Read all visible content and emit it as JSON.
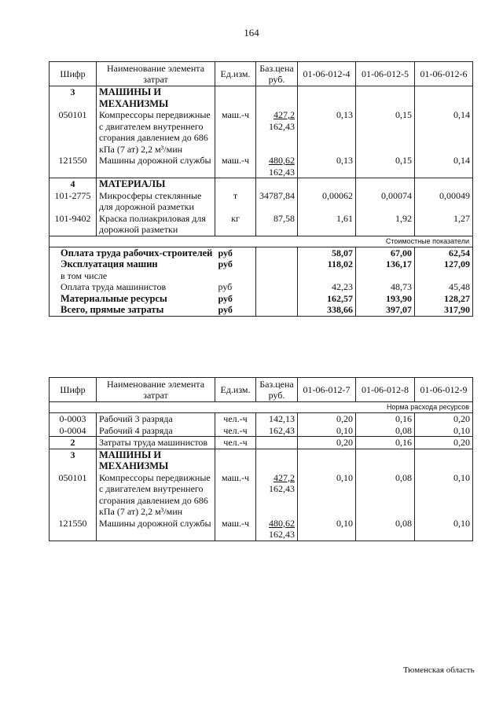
{
  "page_number": "164",
  "footer": "Тюменская область",
  "tables": [
    {
      "headers": [
        "Шифр",
        "Наименование элемента затрат",
        "Ед.изм.",
        "Баз.цена руб.",
        "01-06-012-4",
        "01-06-012-5",
        "01-06-012-6"
      ],
      "rows": [
        {
          "gs": true,
          "code": "3",
          "code_bold": true,
          "name": "МАШИНЫ И МЕХАНИЗМЫ",
          "bold": true,
          "unit": "",
          "price": "",
          "price2": "",
          "values": [
            "",
            "",
            ""
          ]
        },
        {
          "code": "050101",
          "name": "Компрессоры передвижные с двигателем внутреннего сгорания давлением до 686 кПа (7 ат) 2,2 м³/мин",
          "unit": "маш.-ч",
          "price": "427,2",
          "price2": "162,43",
          "values": [
            "0,13",
            "0,15",
            "0,14"
          ]
        },
        {
          "code": "121550",
          "name": "Машины дорожной службы",
          "unit": "маш.-ч",
          "price": "480,62",
          "price2": "162,43",
          "values": [
            "0,13",
            "0,15",
            "0,14"
          ]
        },
        {
          "gs": true,
          "code": "4",
          "code_bold": true,
          "name": "МАТЕРИАЛЫ",
          "bold": true,
          "unit": "",
          "price": "",
          "price2": "",
          "values": [
            "",
            "",
            ""
          ]
        },
        {
          "code": "101-2775",
          "name": "Микросферы стеклянные для дорожной разметки",
          "unit": "т",
          "price": "34787,84",
          "price2": "",
          "values": [
            "0,00062",
            "0,00074",
            "0,00049"
          ]
        },
        {
          "code": "101-9402",
          "name": "Краска полиакриловая для дорожной разметки",
          "unit": "кг",
          "price": "87,58",
          "price2": "",
          "values": [
            "1,61",
            "1,92",
            "1,27"
          ]
        }
      ],
      "band": "Стоимостные показатели",
      "summary": [
        {
          "name": "Оплата труда рабочих-строителей",
          "bold": true,
          "unit": "руб",
          "values": [
            "58,07",
            "67,00",
            "62,54"
          ]
        },
        {
          "name": "Эксплуатация машин",
          "bold": true,
          "unit": "руб",
          "values": [
            "118,02",
            "136,17",
            "127,09"
          ]
        },
        {
          "name": "в том числе",
          "bold": false,
          "unit": "",
          "values": [
            "",
            "",
            ""
          ]
        },
        {
          "name": "Оплата труда машинистов",
          "bold": false,
          "unit": "руб",
          "values": [
            "42,23",
            "48,73",
            "45,48"
          ]
        },
        {
          "name": "Материальные ресурсы",
          "bold": true,
          "unit": "руб",
          "values": [
            "162,57",
            "193,90",
            "128,27"
          ]
        },
        {
          "name": "Всего, прямые затраты",
          "bold": true,
          "unit": "руб",
          "values": [
            "338,66",
            "397,07",
            "317,90"
          ]
        }
      ]
    },
    {
      "headers": [
        "Шифр",
        "Наименование элемента затрат",
        "Ед.изм.",
        "Баз.цена руб.",
        "01-06-012-7",
        "01-06-012-8",
        "01-06-012-9"
      ],
      "band": "Норма расхода ресурсов",
      "rows": [
        {
          "gs": true,
          "code": "0-0003",
          "name": "Рабочий 3 разряда",
          "unit": "чел.-ч",
          "price": "142,13",
          "price2": "",
          "values": [
            "0,20",
            "0,16",
            "0,20"
          ]
        },
        {
          "code": "0-0004",
          "name": "Рабочий 4 разряда",
          "unit": "чел.-ч",
          "price": "162,43",
          "price2": "",
          "values": [
            "0,10",
            "0,08",
            "0,10"
          ]
        },
        {
          "gs": true,
          "code": "2",
          "code_bold": true,
          "name": "Затраты труда машинистов",
          "unit": "чел.-ч",
          "price": "",
          "price2": "",
          "values": [
            "0,20",
            "0,16",
            "0,20"
          ]
        },
        {
          "gs": true,
          "code": "3",
          "code_bold": true,
          "name": "МАШИНЫ И МЕХАНИЗМЫ",
          "bold": true,
          "unit": "",
          "price": "",
          "price2": "",
          "values": [
            "",
            "",
            ""
          ]
        },
        {
          "code": "050101",
          "name": "Компрессоры передвижные с двигателем внутреннего сгорания давлением до 686 кПа (7 ат) 2,2 м³/мин",
          "unit": "маш.-ч",
          "price": "427,2",
          "price2": "162,43",
          "values": [
            "0,10",
            "0,08",
            "0,10"
          ]
        },
        {
          "code": "121550",
          "name": "Машины дорожной службы",
          "unit": "маш.-ч",
          "price": "480,62",
          "price2": "162,43",
          "values": [
            "0,10",
            "0,08",
            "0,10"
          ]
        }
      ],
      "summary": []
    }
  ]
}
